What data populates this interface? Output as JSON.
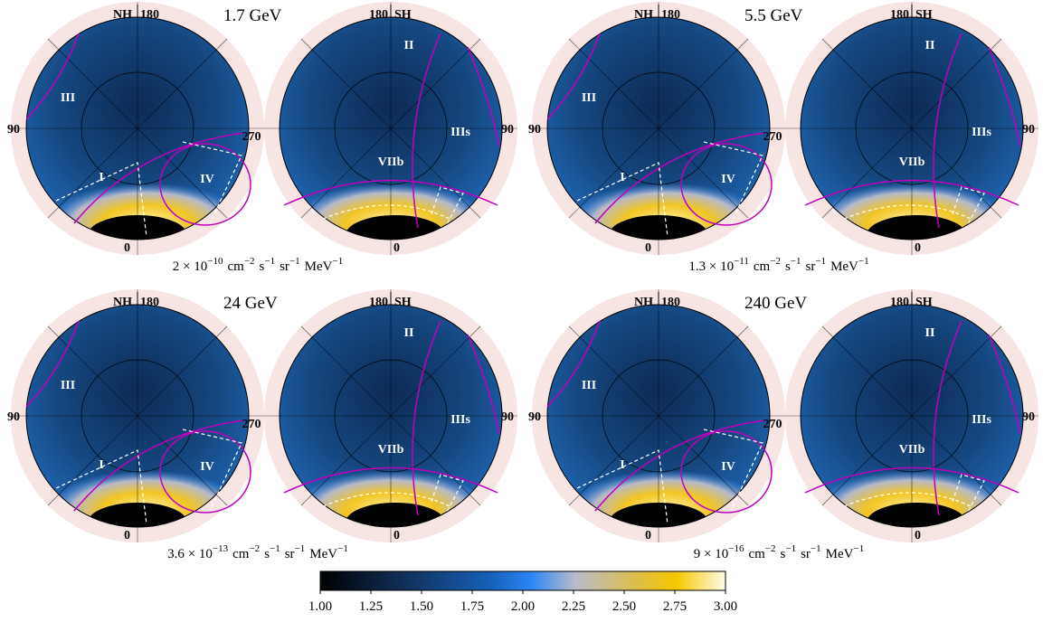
{
  "panels": [
    {
      "energy": "1.7 GeV",
      "normalization": {
        "mantissa": "2 × 10",
        "exponent": "−10"
      }
    },
    {
      "energy": "5.5 GeV",
      "normalization": {
        "mantissa": "1.3 × 10",
        "exponent": "−11"
      }
    },
    {
      "energy": "24 GeV",
      "normalization": {
        "mantissa": "3.6 × 10",
        "exponent": "−13"
      }
    },
    {
      "energy": "240 GeV",
      "normalization": {
        "mantissa": "9 × 10",
        "exponent": "−16"
      }
    }
  ],
  "units": [
    {
      "base": "cm",
      "exp": "−2"
    },
    {
      "base": "s",
      "exp": "−1"
    },
    {
      "base": "sr",
      "exp": "−1"
    },
    {
      "base": "MeV",
      "exp": "−1"
    }
  ],
  "north": {
    "hemisphere": "NH",
    "top": "180",
    "left": "90",
    "right": "270",
    "bottom": "0",
    "regions": [
      "III",
      "I",
      "IV"
    ]
  },
  "south": {
    "hemisphere": "SH",
    "top": "180",
    "right": "90",
    "bottom": "0",
    "regions": [
      "II",
      "IIIs",
      "VIIb"
    ]
  },
  "colorbar": {
    "range": [
      1,
      3
    ],
    "ticks": [
      {
        "value": 1,
        "label": "1.00"
      },
      {
        "value": 1.25,
        "label": "1.25"
      },
      {
        "value": 1.5,
        "label": "1.50"
      },
      {
        "value": 1.75,
        "label": "1.75"
      },
      {
        "value": 2,
        "label": "2.00"
      },
      {
        "value": 2.25,
        "label": "2.25"
      },
      {
        "value": 2.5,
        "label": "2.50"
      },
      {
        "value": 2.75,
        "label": "2.75"
      },
      {
        "value": 3,
        "label": "3.00"
      }
    ]
  }
}
